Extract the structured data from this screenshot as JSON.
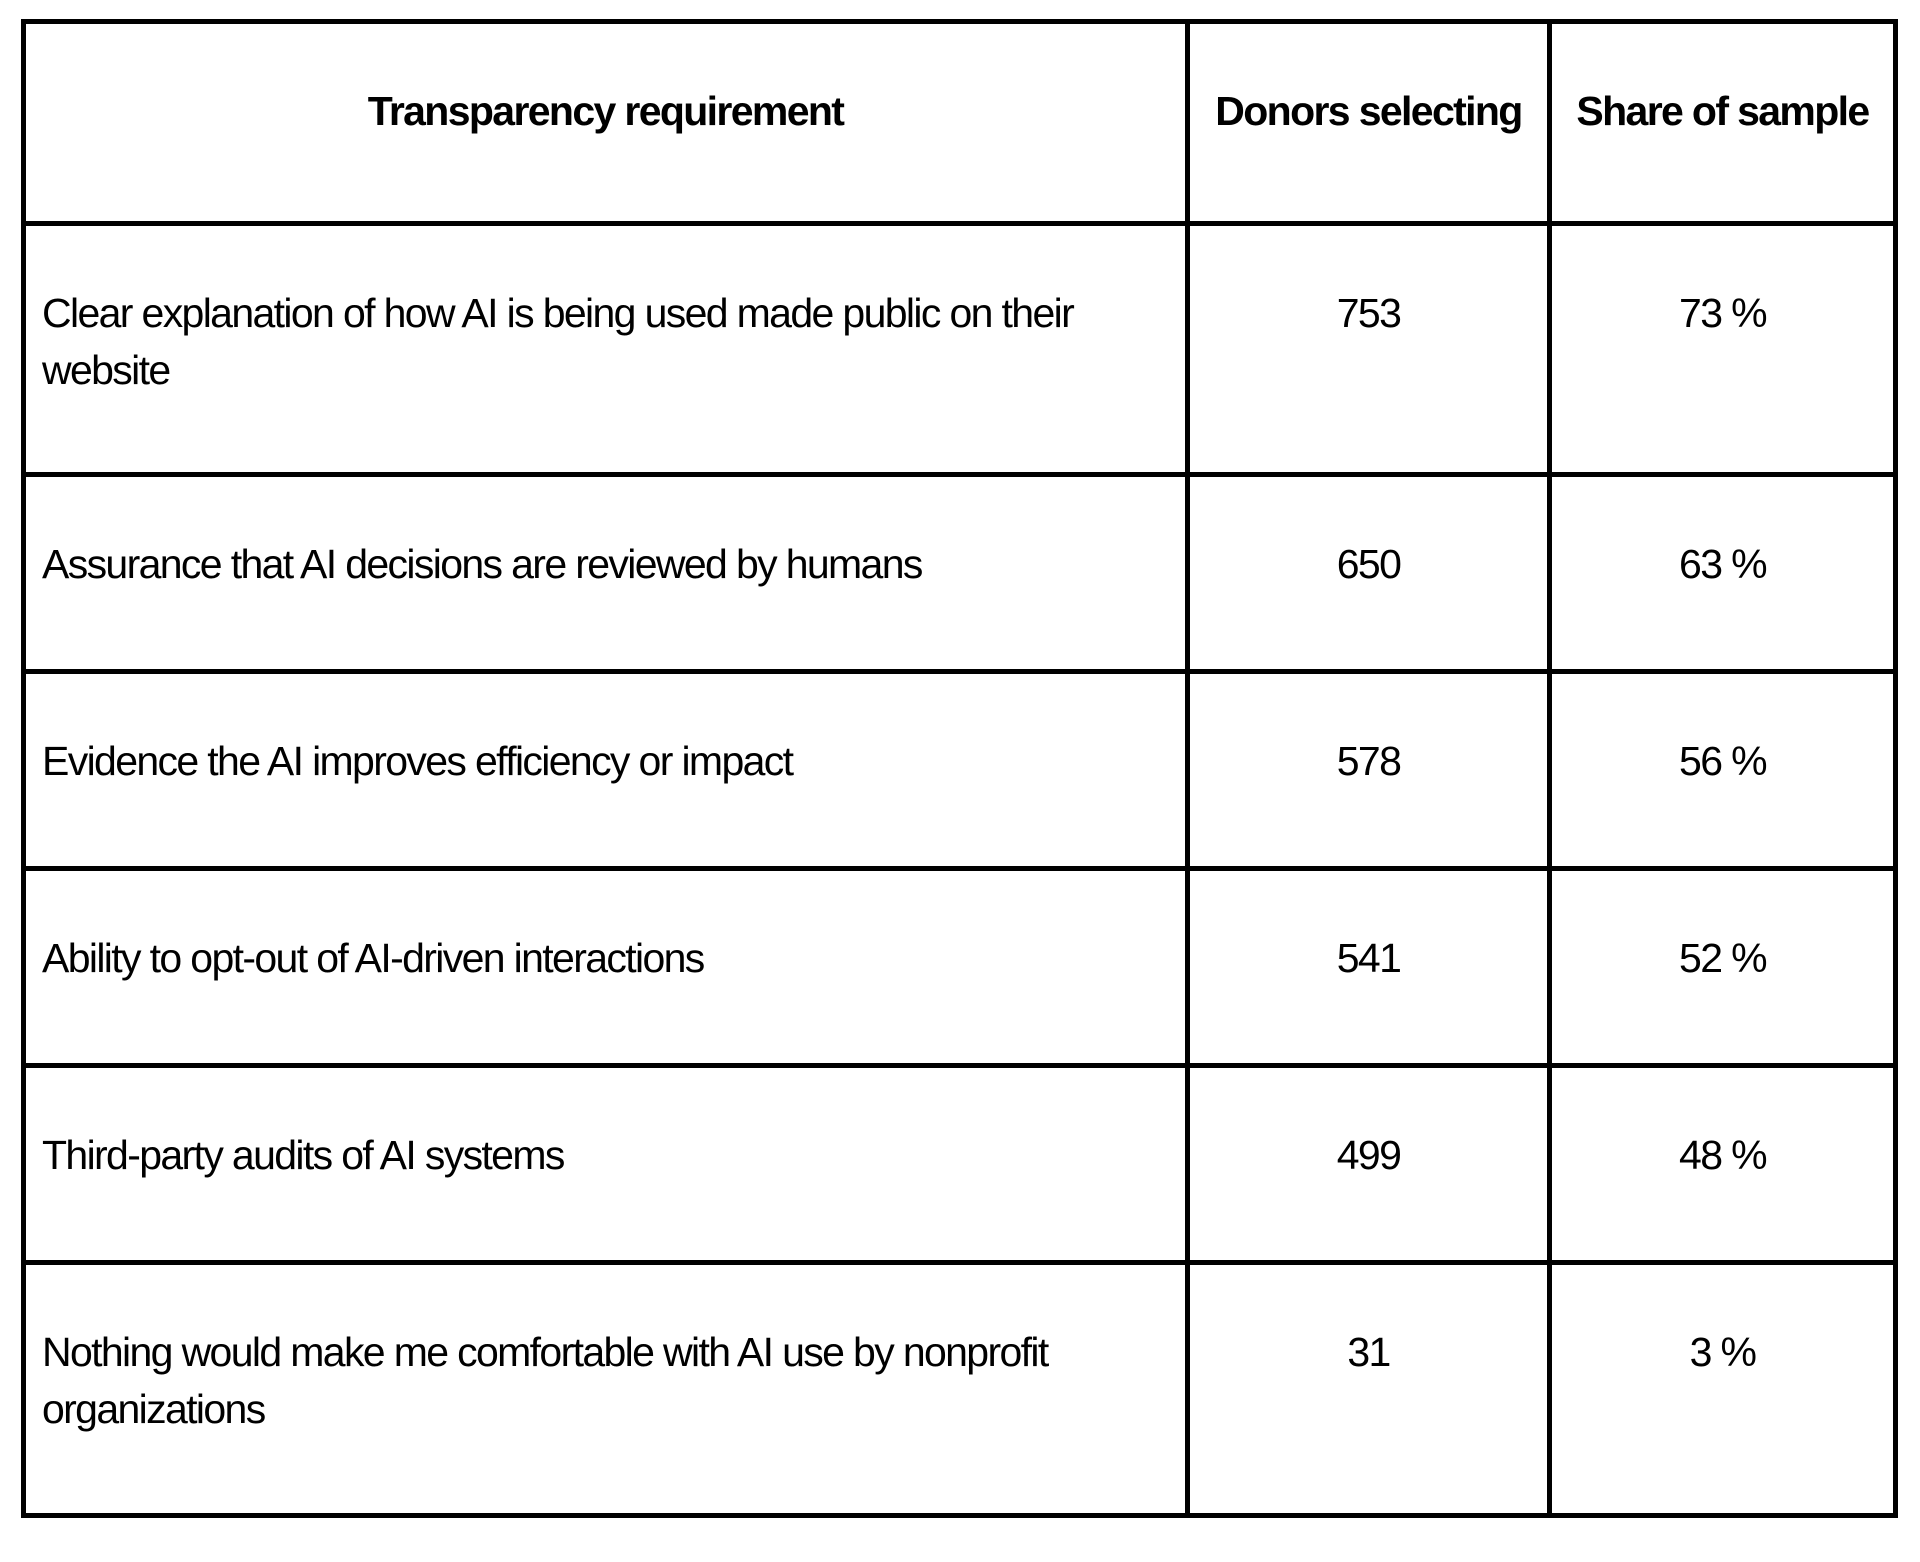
{
  "page": {
    "background": "#ffffff",
    "text_color": "#000000",
    "border_color": "#000000"
  },
  "table": {
    "columns": [
      "Transparency requirement",
      "Donors selecting",
      "Share of sample"
    ],
    "rows": [
      {
        "requirement": "Clear explanation of how AI is being used made public on their website",
        "donors": "753",
        "share": "73 %"
      },
      {
        "requirement": "Assurance that AI decisions are reviewed by humans",
        "donors": "650",
        "share": "63 %"
      },
      {
        "requirement": "Evidence the AI improves efficiency or impact",
        "donors": "578",
        "share": "56 %"
      },
      {
        "requirement": "Ability to opt-out of AI-driven interactions",
        "donors": "541",
        "share": "52 %"
      },
      {
        "requirement": "Third-party audits of AI systems",
        "donors": "499",
        "share": "48 %"
      },
      {
        "requirement": "Nothing would make me comfortable with AI use by nonprofit organizations",
        "donors": "31",
        "share": "3 %"
      }
    ]
  }
}
